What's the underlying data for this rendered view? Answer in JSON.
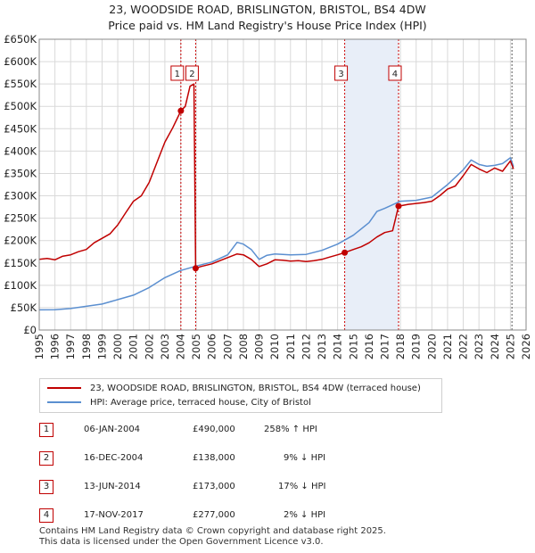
{
  "title": {
    "line1": "23, WOODSIDE ROAD, BRISLINGTON, BRISTOL, BS4 4DW",
    "line2": "Price paid vs. HM Land Registry's House Price Index (HPI)"
  },
  "colors": {
    "property": "#c00000",
    "hpi": "#5b8fd0",
    "highlight": "#e8eef8",
    "vline": "#cc0000"
  },
  "chart_data": {
    "type": "line",
    "title": "Price paid vs. HM Land Registry's House Price Index (HPI)",
    "xlabel": "",
    "ylabel": "",
    "xlim": [
      1995,
      2026
    ],
    "ylim": [
      0,
      650000
    ],
    "y_ticks": [
      0,
      50000,
      100000,
      150000,
      200000,
      250000,
      300000,
      350000,
      400000,
      450000,
      500000,
      550000,
      600000,
      650000
    ],
    "y_tick_labels": [
      "£0",
      "£50K",
      "£100K",
      "£150K",
      "£200K",
      "£250K",
      "£300K",
      "£350K",
      "£400K",
      "£450K",
      "£500K",
      "£550K",
      "£600K",
      "£650K"
    ],
    "x_ticks": [
      1995,
      1996,
      1997,
      1998,
      1999,
      2000,
      2001,
      2002,
      2003,
      2004,
      2005,
      2006,
      2007,
      2008,
      2009,
      2010,
      2011,
      2012,
      2013,
      2014,
      2015,
      2016,
      2017,
      2018,
      2019,
      2020,
      2021,
      2022,
      2023,
      2024,
      2025,
      2026
    ],
    "x_tick_labels": [
      "1995",
      "1996",
      "1997",
      "1998",
      "1999",
      "2000",
      "2001",
      "2002",
      "2003",
      "2004",
      "2005",
      "2006",
      "2007",
      "2008",
      "2009",
      "2010",
      "2011",
      "2012",
      "2013",
      "2014",
      "2015",
      "2016",
      "2017",
      "2018",
      "2019",
      "2020",
      "2021",
      "2022",
      "2023",
      "2024",
      "2025",
      "2026"
    ],
    "grid": true,
    "series": [
      {
        "name": "23, WOODSIDE ROAD, BRISLINGTON, BRISTOL, BS4 4DW (terraced house)",
        "color": "#c00000",
        "points": [
          [
            1995.0,
            158000
          ],
          [
            1995.5,
            160000
          ],
          [
            1996.0,
            157000
          ],
          [
            1996.5,
            165000
          ],
          [
            1997.0,
            168000
          ],
          [
            1997.5,
            175000
          ],
          [
            1998.0,
            180000
          ],
          [
            1998.5,
            195000
          ],
          [
            1999.0,
            205000
          ],
          [
            1999.5,
            215000
          ],
          [
            2000.0,
            235000
          ],
          [
            2000.5,
            262000
          ],
          [
            2001.0,
            288000
          ],
          [
            2001.5,
            300000
          ],
          [
            2002.0,
            330000
          ],
          [
            2002.5,
            375000
          ],
          [
            2003.0,
            420000
          ],
          [
            2003.5,
            452000
          ],
          [
            2004.02,
            490000
          ],
          [
            2004.3,
            500000
          ],
          [
            2004.6,
            545000
          ],
          [
            2004.85,
            550000
          ],
          [
            2004.96,
            138000
          ],
          [
            2005.3,
            142000
          ],
          [
            2006.0,
            148000
          ],
          [
            2006.5,
            155000
          ],
          [
            2007.0,
            162000
          ],
          [
            2007.6,
            170000
          ],
          [
            2008.0,
            168000
          ],
          [
            2008.5,
            158000
          ],
          [
            2009.0,
            142000
          ],
          [
            2009.5,
            148000
          ],
          [
            2010.0,
            157000
          ],
          [
            2010.5,
            156000
          ],
          [
            2011.0,
            154000
          ],
          [
            2011.5,
            155000
          ],
          [
            2012.0,
            153000
          ],
          [
            2012.5,
            155000
          ],
          [
            2013.0,
            158000
          ],
          [
            2013.5,
            163000
          ],
          [
            2014.0,
            168000
          ],
          [
            2014.45,
            173000
          ],
          [
            2015.0,
            180000
          ],
          [
            2015.5,
            186000
          ],
          [
            2016.0,
            195000
          ],
          [
            2016.5,
            208000
          ],
          [
            2017.0,
            218000
          ],
          [
            2017.5,
            222000
          ],
          [
            2017.88,
            277000
          ],
          [
            2018.5,
            281000
          ],
          [
            2019.0,
            283000
          ],
          [
            2019.5,
            285000
          ],
          [
            2020.0,
            288000
          ],
          [
            2020.5,
            300000
          ],
          [
            2021.0,
            315000
          ],
          [
            2021.5,
            322000
          ],
          [
            2022.0,
            345000
          ],
          [
            2022.5,
            370000
          ],
          [
            2023.0,
            360000
          ],
          [
            2023.5,
            352000
          ],
          [
            2024.0,
            362000
          ],
          [
            2024.5,
            355000
          ],
          [
            2025.0,
            378000
          ],
          [
            2025.2,
            360000
          ]
        ]
      },
      {
        "name": "HPI: Average price, terraced house, City of Bristol",
        "color": "#5b8fd0",
        "points": [
          [
            1995.0,
            45000
          ],
          [
            1996.0,
            45500
          ],
          [
            1997.0,
            48000
          ],
          [
            1998.0,
            53000
          ],
          [
            1999.0,
            58000
          ],
          [
            2000.0,
            68000
          ],
          [
            2001.0,
            78000
          ],
          [
            2002.0,
            95000
          ],
          [
            2003.0,
            117000
          ],
          [
            2004.0,
            133000
          ],
          [
            2005.0,
            143000
          ],
          [
            2006.0,
            152000
          ],
          [
            2007.0,
            168000
          ],
          [
            2007.6,
            196000
          ],
          [
            2008.0,
            192000
          ],
          [
            2008.5,
            180000
          ],
          [
            2009.0,
            158000
          ],
          [
            2009.5,
            167000
          ],
          [
            2010.0,
            170000
          ],
          [
            2011.0,
            168000
          ],
          [
            2012.0,
            169000
          ],
          [
            2013.0,
            178000
          ],
          [
            2014.0,
            192000
          ],
          [
            2015.0,
            212000
          ],
          [
            2016.0,
            240000
          ],
          [
            2016.5,
            265000
          ],
          [
            2017.0,
            272000
          ],
          [
            2017.5,
            280000
          ],
          [
            2018.0,
            288000
          ],
          [
            2019.0,
            290000
          ],
          [
            2020.0,
            297000
          ],
          [
            2021.0,
            325000
          ],
          [
            2022.0,
            358000
          ],
          [
            2022.5,
            380000
          ],
          [
            2023.0,
            370000
          ],
          [
            2023.5,
            366000
          ],
          [
            2024.0,
            368000
          ],
          [
            2024.5,
            372000
          ],
          [
            2025.0,
            385000
          ],
          [
            2025.2,
            365000
          ]
        ]
      }
    ],
    "highlight_spans": [
      [
        2014.45,
        2017.88
      ]
    ],
    "sales": [
      {
        "id": "1",
        "year": 2004.02,
        "price": 490000
      },
      {
        "id": "2",
        "year": 2004.96,
        "price": 138000
      },
      {
        "id": "3",
        "year": 2014.45,
        "price": 173000
      },
      {
        "id": "4",
        "year": 2017.88,
        "price": 277000
      }
    ],
    "current_marker_year": 2025.1
  },
  "legend": {
    "property_label": "23, WOODSIDE ROAD, BRISLINGTON, BRISTOL, BS4 4DW (terraced house)",
    "hpi_label": "HPI: Average price, terraced house, City of Bristol"
  },
  "sales_table": [
    {
      "num": "1",
      "date": "06-JAN-2004",
      "price": "£490,000",
      "hpi": "258% ↑ HPI"
    },
    {
      "num": "2",
      "date": "16-DEC-2004",
      "price": "£138,000",
      "hpi": "9% ↓ HPI"
    },
    {
      "num": "3",
      "date": "13-JUN-2014",
      "price": "£173,000",
      "hpi": "17% ↓ HPI"
    },
    {
      "num": "4",
      "date": "17-NOV-2017",
      "price": "£277,000",
      "hpi": "2% ↓ HPI"
    }
  ],
  "footer": {
    "line1": "Contains HM Land Registry data © Crown copyright and database right 2025.",
    "line2": "This data is licensed under the Open Government Licence v3.0."
  }
}
